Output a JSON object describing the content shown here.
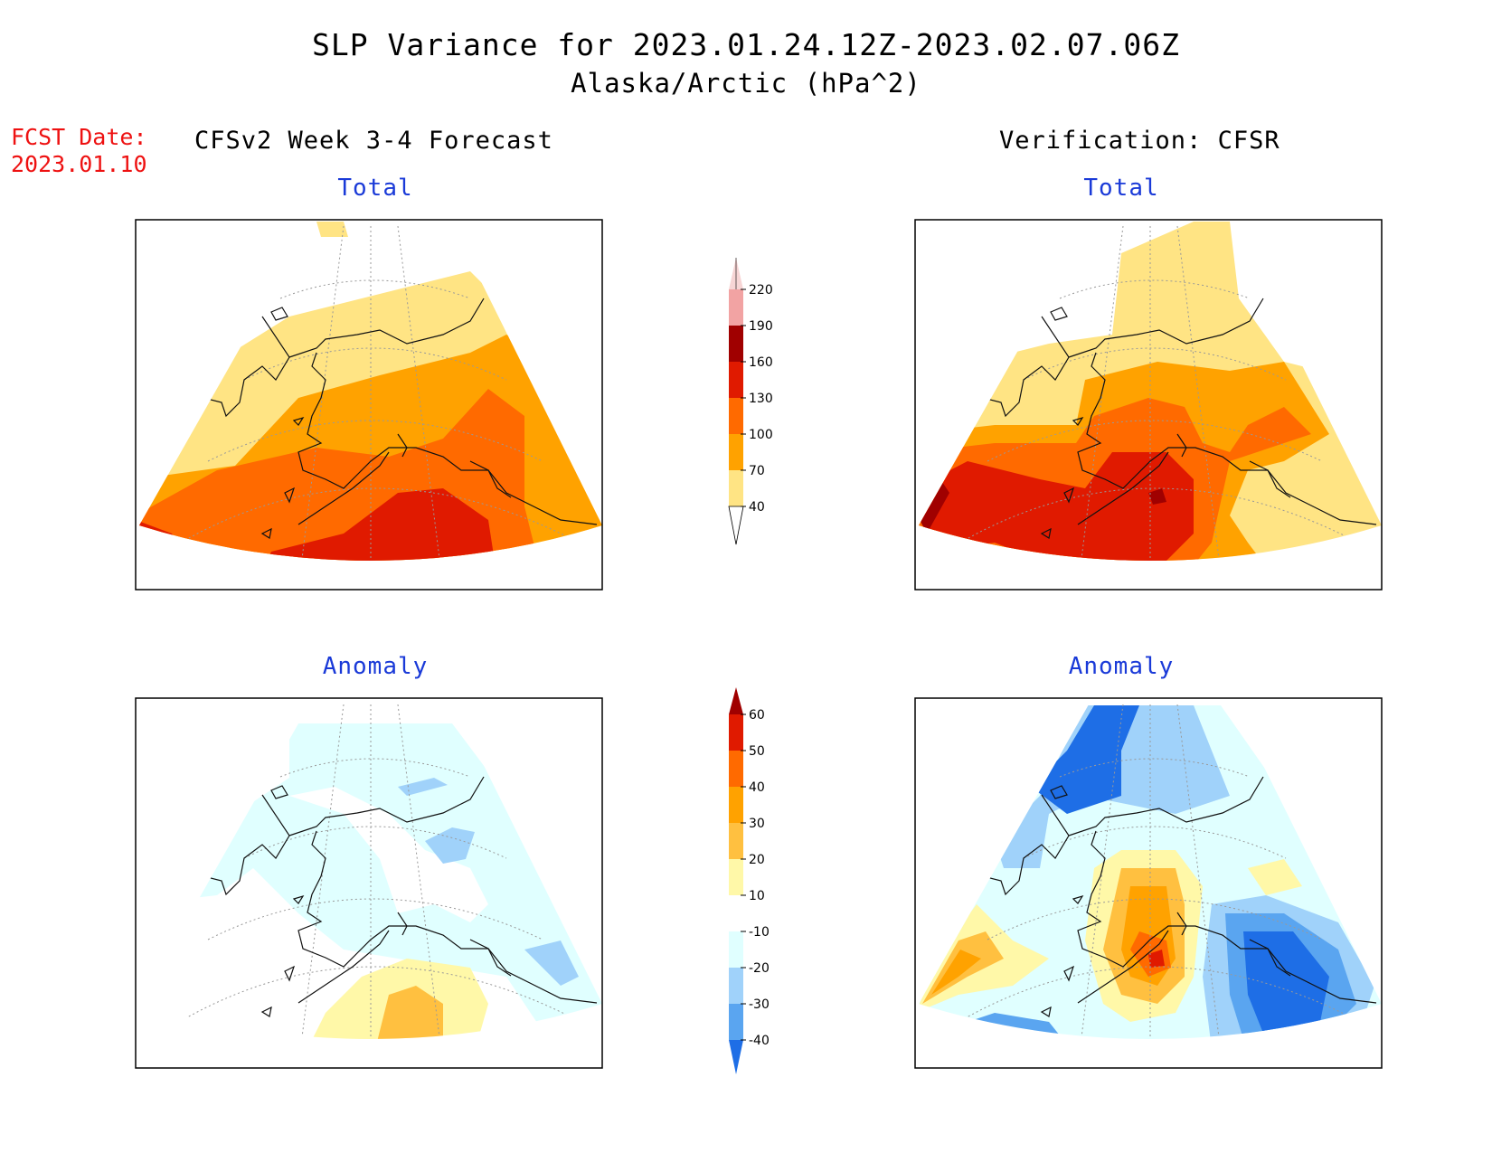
{
  "header": {
    "title": "SLP Variance for 2023.01.24.12Z-2023.02.07.06Z",
    "subtitle": "Alaska/Arctic (hPa^2)",
    "fcst_line1": "FCST Date:",
    "fcst_line2": "2023.01.10"
  },
  "columns": {
    "left": "CFSv2 Week 3-4 Forecast",
    "right": "Verification: CFSR"
  },
  "panels": {
    "total_left": "Total",
    "total_right": "Total",
    "anom_left": "Anomaly",
    "anom_right": "Anomaly"
  },
  "colorbars": {
    "total": {
      "levels": [
        "220",
        "190",
        "160",
        "130",
        "100",
        "70",
        "40"
      ],
      "colors": [
        "#f7d5d5",
        "#f2a3a3",
        "#a00000",
        "#e01a00",
        "#ff6a00",
        "#ffa200",
        "#ffe484"
      ]
    },
    "anomaly": {
      "levels": [
        "60",
        "50",
        "40",
        "30",
        "20",
        "10",
        "-10",
        "-20",
        "-30",
        "-40"
      ],
      "colors": [
        "#a00000",
        "#e01a00",
        "#ff6a00",
        "#ffa200",
        "#ffc040",
        "#fff8a8",
        "#ffffff",
        "#e0ffff",
        "#a0d2fa",
        "#5aa5f0",
        "#1e6ee6"
      ]
    }
  },
  "chart_data": {
    "type": "heatmap",
    "panels": [
      {
        "name": "CFSv2 Week 3-4 Forecast Total",
        "region": "Alaska/Arctic",
        "units": "hPa^2",
        "range": [
          40,
          190
        ],
        "description": "variance increases southward, max 130-160 south of Alaska"
      },
      {
        "name": "Verification CFSR Total",
        "region": "Alaska/Arctic",
        "units": "hPa^2",
        "range": [
          40,
          190
        ],
        "description": "max 130-190 over Gulf of Alaska / Bering"
      },
      {
        "name": "CFSv2 Week 3-4 Forecast Anomaly",
        "region": "Alaska/Arctic",
        "units": "hPa^2",
        "range": [
          -30,
          30
        ],
        "description": "weak anomalies, slight negative north, positive 20-30 south"
      },
      {
        "name": "Verification CFSR Anomaly",
        "region": "Alaska/Arctic",
        "units": "hPa^2",
        "range": [
          -40,
          60
        ],
        "description": "positive over south-central Alaska, negative northeast Pacific and Arctic"
      }
    ]
  }
}
